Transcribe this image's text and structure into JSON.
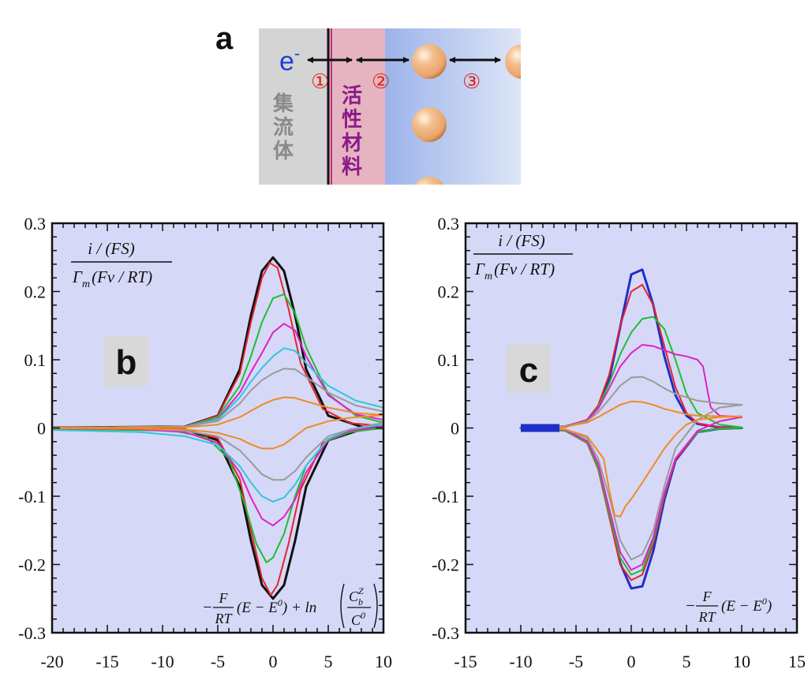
{
  "figure": {
    "panel_a": {
      "label": "a",
      "electron": "e",
      "electron_sup": "-",
      "markers": [
        "①",
        "②",
        "③"
      ],
      "collector_label": [
        "集",
        "流",
        "体"
      ],
      "active_label": [
        "活",
        "性",
        "材",
        "料"
      ],
      "colors": {
        "collector": "#d4d4d4",
        "active": "#e6b4c0",
        "electrolyte_start": "#9db3ea",
        "electrolyte_end": "#dde6f7",
        "marker": "#e2231a",
        "electron": "#1f3fd6",
        "collector_text": "#8a8a8a",
        "active_text": "#8a1a8a",
        "particle": "#e9a36a"
      }
    },
    "ylabel_fraction": {
      "num_prefix": "i / (",
      "num_fs": "FS",
      "num_suffix": ")",
      "den_gamma": "Γ",
      "den_sub": "m",
      "den_paren_open": "(",
      "den_fv": "Fv / RT",
      "den_paren_close": ")"
    }
  },
  "chart_data": [
    {
      "type": "line",
      "panel": "b",
      "label": "b",
      "xlim": [
        -20,
        10
      ],
      "ylim": [
        -0.3,
        0.3
      ],
      "xticks": [
        -20,
        -15,
        -10,
        -5,
        0,
        5,
        10
      ],
      "yticks": [
        0.3,
        0.2,
        0.1,
        0,
        -0.1,
        -0.2,
        -0.3
      ],
      "xtick_labels": [
        "-20",
        "-15",
        "-10",
        "-5",
        "0",
        "5",
        "10"
      ],
      "ytick_labels": [
        "0.3",
        "0.2",
        "0.1",
        "0",
        "-0.1",
        "-0.2",
        "-0.3"
      ],
      "xlabel_parts": {
        "minus": "−",
        "f_num": "F",
        "f_den": "RT",
        "expr": "(E − E",
        "expr_sup": "0",
        "expr_close": ") + ln",
        "c_num": "C",
        "c_num_sub": "b",
        "c_num_sup": "Z",
        "c_den": "C",
        "c_den_sup": "0"
      },
      "grid": false,
      "background": "#d6d8f8",
      "series": [
        {
          "color": "#111111",
          "ox": [
            -25,
            -8,
            -5,
            -3,
            -2,
            -1,
            0,
            1,
            2,
            3,
            5,
            8,
            10
          ],
          "oy": [
            0,
            0.002,
            0.018,
            0.086,
            0.165,
            0.23,
            0.25,
            0.23,
            0.165,
            0.086,
            0.018,
            0.002,
            0.001
          ],
          "rx": [
            10,
            8,
            5,
            3,
            2,
            1,
            0,
            -1,
            -2,
            -3,
            -5,
            -8,
            -25
          ],
          "ry": [
            0,
            -0.002,
            -0.018,
            -0.086,
            -0.165,
            -0.23,
            -0.25,
            -0.23,
            -0.165,
            -0.086,
            -0.018,
            -0.002,
            0
          ]
        },
        {
          "color": "#e4242c",
          "ox": [
            -25,
            -8,
            -5,
            -3,
            -2,
            -1,
            -0.3,
            0.4,
            1.4,
            2.5,
            4.5,
            7,
            10
          ],
          "oy": [
            0,
            0.002,
            0.018,
            0.08,
            0.155,
            0.22,
            0.242,
            0.235,
            0.175,
            0.095,
            0.028,
            0.007,
            0.003
          ],
          "rx": [
            10,
            7,
            4.5,
            2.5,
            1.4,
            0.4,
            -0.2,
            -1,
            -2,
            -3,
            -5,
            -8,
            -25
          ],
          "ry": [
            0,
            -0.005,
            -0.022,
            -0.09,
            -0.17,
            -0.23,
            -0.245,
            -0.22,
            -0.15,
            -0.075,
            -0.015,
            -0.002,
            0
          ]
        },
        {
          "color": "#1fbf2a",
          "ox": [
            -25,
            -8,
            -5,
            -3,
            -2,
            -1,
            0,
            1,
            2,
            3,
            5,
            7.5,
            10
          ],
          "oy": [
            0,
            0.002,
            0.016,
            0.062,
            0.105,
            0.155,
            0.19,
            0.196,
            0.168,
            0.118,
            0.05,
            0.018,
            0.008
          ],
          "rx": [
            10,
            7,
            5,
            3,
            2,
            1,
            0,
            -0.6,
            -1.5,
            -2.5,
            -4,
            -6,
            -9,
            -25
          ],
          "ry": [
            0,
            -0.006,
            -0.018,
            -0.055,
            -0.1,
            -0.155,
            -0.19,
            -0.197,
            -0.17,
            -0.115,
            -0.045,
            -0.014,
            -0.004,
            0
          ]
        },
        {
          "color": "#e020c8",
          "ox": [
            -25,
            -8,
            -5,
            -3,
            -2,
            -1,
            0,
            1,
            2,
            3,
            5,
            7.5,
            10
          ],
          "oy": [
            0,
            0.002,
            0.013,
            0.052,
            0.082,
            0.11,
            0.14,
            0.153,
            0.143,
            0.105,
            0.048,
            0.02,
            0.012
          ],
          "rx": [
            10,
            7,
            5,
            3,
            2,
            1,
            0,
            -1,
            -2,
            -3,
            -5,
            -8,
            -12,
            -25
          ],
          "ry": [
            0.002,
            -0.004,
            -0.017,
            -0.065,
            -0.105,
            -0.13,
            -0.143,
            -0.133,
            -0.102,
            -0.065,
            -0.022,
            -0.006,
            -0.002,
            0
          ]
        },
        {
          "color": "#30c8d8",
          "ox": [
            -25,
            -8,
            -5,
            -3,
            -2,
            -1,
            0,
            1,
            2,
            3,
            5,
            7.5,
            10
          ],
          "oy": [
            0,
            0.002,
            0.012,
            0.045,
            0.068,
            0.088,
            0.105,
            0.117,
            0.113,
            0.095,
            0.062,
            0.04,
            0.03
          ],
          "rx": [
            10,
            7,
            5,
            3,
            2,
            1,
            0,
            -1,
            -2,
            -3,
            -5,
            -8,
            -12,
            -20
          ],
          "ry": [
            0.005,
            -0.002,
            -0.016,
            -0.055,
            -0.083,
            -0.102,
            -0.108,
            -0.1,
            -0.08,
            -0.056,
            -0.025,
            -0.012,
            -0.006,
            -0.003
          ]
        },
        {
          "color": "#9a9a9a",
          "ox": [
            -25,
            -8,
            -5,
            -3,
            -2,
            -1,
            0,
            1,
            2,
            3,
            5,
            7.5,
            10
          ],
          "oy": [
            0,
            0.002,
            0.01,
            0.036,
            0.055,
            0.07,
            0.08,
            0.087,
            0.086,
            0.075,
            0.052,
            0.033,
            0.024
          ],
          "rx": [
            10,
            7,
            5,
            3,
            2,
            1,
            0,
            -1,
            -2,
            -3,
            -5,
            -8,
            -12,
            -25
          ],
          "ry": [
            0.008,
            -0.002,
            -0.012,
            -0.043,
            -0.063,
            -0.076,
            -0.076,
            -0.068,
            -0.05,
            -0.033,
            -0.012,
            -0.004,
            -0.001,
            0
          ]
        },
        {
          "color": "#f08a22",
          "ox": [
            -25,
            -8,
            -5,
            -3,
            -2,
            -1,
            0,
            1,
            2,
            3,
            5,
            7.5,
            10
          ],
          "oy": [
            0,
            0.001,
            0.005,
            0.016,
            0.025,
            0.034,
            0.041,
            0.045,
            0.044,
            0.039,
            0.03,
            0.022,
            0.019
          ],
          "rx": [
            10,
            7,
            5,
            3,
            2,
            1,
            0,
            -1,
            -2,
            -3,
            -5,
            -8,
            -12,
            -25
          ],
          "ry": [
            0.019,
            0.015,
            0.01,
            0.0,
            -0.012,
            -0.024,
            -0.03,
            -0.03,
            -0.024,
            -0.016,
            -0.007,
            -0.002,
            -0.001,
            0
          ]
        }
      ]
    },
    {
      "type": "line",
      "panel": "c",
      "label": "c",
      "xlim": [
        -15,
        15
      ],
      "ylim": [
        -0.3,
        0.3
      ],
      "xticks": [
        -15,
        -10,
        -5,
        0,
        5,
        10,
        15
      ],
      "yticks": [
        0.3,
        0.2,
        0.1,
        0,
        -0.1,
        -0.2,
        -0.3
      ],
      "xtick_labels": [
        "-15",
        "-10",
        "-5",
        "0",
        "5",
        "10",
        "15"
      ],
      "ytick_labels": [
        "0.3",
        "0.2",
        "0.1",
        "0",
        "-0.1",
        "-0.2",
        "-0.3"
      ],
      "xlabel_parts": {
        "minus": "−",
        "f_num": "F",
        "f_den": "RT",
        "expr": "(E − E",
        "expr_sup": "0",
        "expr_close": ")"
      },
      "grid": false,
      "background": "#d6d8f8",
      "series": [
        {
          "color": "#1c2fc8",
          "ox": [
            -10,
            -6,
            -4,
            -3,
            -2,
            -1,
            0,
            1,
            2,
            3,
            4,
            5,
            6,
            8,
            10
          ],
          "oy": [
            0,
            0.002,
            0.011,
            0.03,
            0.07,
            0.148,
            0.225,
            0.232,
            0.18,
            0.105,
            0.048,
            0.018,
            0.006,
            0.001,
            0
          ],
          "rx": [
            10,
            8,
            6,
            4,
            3,
            2,
            1,
            0,
            -1,
            -2,
            -3,
            -4,
            -6,
            -10
          ],
          "ry": [
            0,
            -0.001,
            -0.006,
            -0.048,
            -0.105,
            -0.18,
            -0.232,
            -0.235,
            -0.198,
            -0.125,
            -0.055,
            -0.02,
            -0.003,
            0
          ]
        },
        {
          "color": "#e4242c",
          "ox": [
            -10,
            -6,
            -4,
            -3,
            -2,
            -1,
            0,
            1,
            2,
            3,
            4,
            5,
            6,
            8,
            10
          ],
          "oy": [
            0,
            0.002,
            0.012,
            0.033,
            0.078,
            0.15,
            0.2,
            0.21,
            0.18,
            0.12,
            0.06,
            0.022,
            0.007,
            0.001,
            0
          ],
          "rx": [
            10,
            8,
            6,
            4,
            3,
            2,
            1,
            0,
            -1,
            -2,
            -3,
            -4,
            -6,
            -10
          ],
          "ry": [
            0,
            -0.001,
            -0.006,
            -0.047,
            -0.1,
            -0.17,
            -0.215,
            -0.223,
            -0.2,
            -0.13,
            -0.06,
            -0.022,
            -0.004,
            0
          ]
        },
        {
          "color": "#1fbf2a",
          "ox": [
            -10,
            -6,
            -4,
            -3,
            -2,
            -1,
            0,
            1,
            2,
            3,
            4,
            5,
            6,
            8,
            10
          ],
          "oy": [
            0,
            0.002,
            0.011,
            0.03,
            0.065,
            0.108,
            0.14,
            0.16,
            0.163,
            0.145,
            0.1,
            0.05,
            0.022,
            0.005,
            0.001
          ],
          "rx": [
            10,
            8,
            6,
            4,
            3,
            2,
            1,
            0,
            -1,
            -2,
            -3,
            -4,
            -6,
            -10
          ],
          "ry": [
            0,
            -0.001,
            -0.006,
            -0.045,
            -0.097,
            -0.165,
            -0.208,
            -0.215,
            -0.19,
            -0.125,
            -0.058,
            -0.021,
            -0.004,
            0
          ]
        },
        {
          "color": "#e020c8",
          "ox": [
            -10,
            -6,
            -4,
            -3,
            -2,
            -1,
            0,
            1,
            2,
            3,
            4,
            5,
            6,
            6.5,
            6.9,
            7.2,
            8,
            10
          ],
          "oy": [
            0,
            0.002,
            0.011,
            0.028,
            0.058,
            0.09,
            0.11,
            0.122,
            0.12,
            0.114,
            0.108,
            0.105,
            0.1,
            0.09,
            0.055,
            0.03,
            0.018,
            0.016
          ],
          "rx": [
            10,
            8,
            6,
            4,
            3,
            2,
            1,
            0,
            -1,
            -2,
            -3,
            -4,
            -6,
            -10
          ],
          "ry": [
            0.016,
            0.01,
            -0.004,
            -0.045,
            -0.095,
            -0.16,
            -0.2,
            -0.208,
            -0.182,
            -0.118,
            -0.052,
            -0.019,
            -0.003,
            0
          ]
        },
        {
          "color": "#9a9a9a",
          "ox": [
            -10,
            -6,
            -4,
            -3,
            -2,
            -1,
            0,
            1,
            2,
            3,
            4,
            5,
            6,
            8,
            10
          ],
          "oy": [
            0,
            0.002,
            0.01,
            0.023,
            0.042,
            0.062,
            0.074,
            0.075,
            0.068,
            0.058,
            0.05,
            0.045,
            0.04,
            0.036,
            0.034
          ],
          "rx": [
            10,
            8,
            6,
            4,
            3,
            2,
            1,
            0,
            -1,
            -2,
            -3,
            -4,
            -6,
            -10
          ],
          "ry": [
            0.034,
            0.03,
            0.012,
            -0.03,
            -0.085,
            -0.15,
            -0.185,
            -0.193,
            -0.165,
            -0.1,
            -0.045,
            -0.015,
            -0.002,
            0
          ]
        },
        {
          "color": "#f08a22",
          "ox": [
            -10,
            -6,
            -4,
            -3,
            -2,
            -1,
            0,
            1,
            2,
            3,
            4,
            5,
            6,
            8,
            10
          ],
          "oy": [
            0,
            0.002,
            0.008,
            0.016,
            0.025,
            0.034,
            0.039,
            0.038,
            0.034,
            0.028,
            0.024,
            0.02,
            0.018,
            0.017,
            0.017
          ],
          "rx": [
            10,
            8,
            6,
            5,
            4,
            3,
            2,
            1,
            0,
            -0.5,
            -1,
            -1.5,
            -2,
            -2.5,
            -4,
            -6,
            -10
          ],
          "ry": [
            0.017,
            0.016,
            0.012,
            0.005,
            -0.01,
            -0.03,
            -0.055,
            -0.08,
            -0.104,
            -0.114,
            -0.13,
            -0.128,
            -0.09,
            -0.045,
            -0.012,
            -0.002,
            0
          ]
        }
      ]
    }
  ]
}
